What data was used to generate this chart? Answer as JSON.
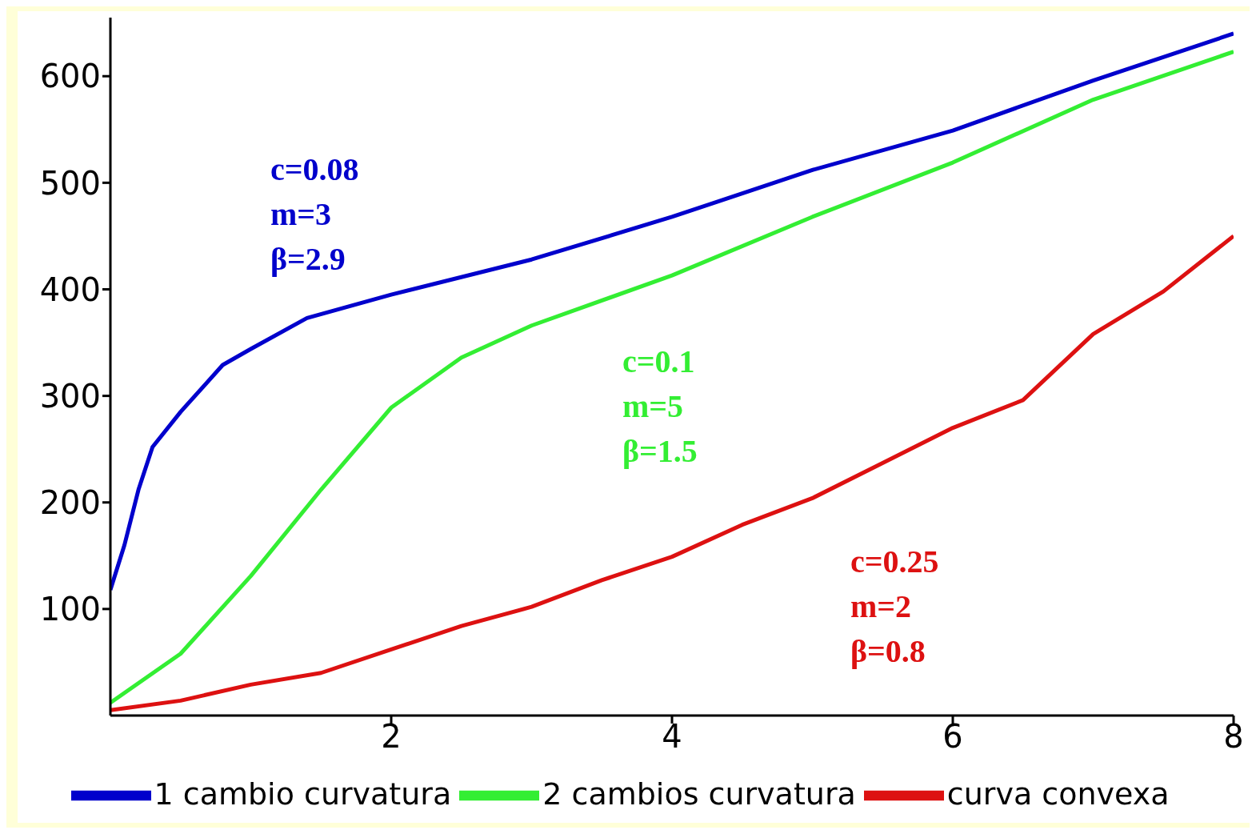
{
  "chart_data": {
    "type": "line",
    "x": [
      0,
      0.1,
      0.2,
      0.3,
      0.5,
      0.8,
      1,
      1.4,
      2,
      3,
      4,
      5,
      6,
      7,
      8
    ],
    "series": [
      {
        "name": "1 cambio curvatura",
        "color": "#0000cc",
        "values": [
          118,
          160,
          212,
          252,
          285,
          329,
          344,
          373,
          395,
          428,
          468,
          512,
          549,
          596,
          640
        ]
      },
      {
        "name": "2 cambios curvatura",
        "color": "#33ee33",
        "x": [
          0,
          0.5,
          1,
          1.5,
          2,
          2.5,
          3,
          4,
          5,
          6,
          7,
          8
        ],
        "values": [
          12,
          58,
          131,
          212,
          289,
          336,
          366,
          413,
          468,
          519,
          578,
          623
        ]
      },
      {
        "name": "curva convexa",
        "color": "#dd1111",
        "x": [
          0,
          0.5,
          1,
          1.5,
          2,
          2.5,
          3,
          3.5,
          4,
          4.5,
          5,
          5.5,
          6,
          6.5,
          7,
          7.5,
          8
        ],
        "values": [
          5,
          14,
          29,
          40,
          62,
          84,
          102,
          127,
          149,
          179,
          204,
          237,
          270,
          296,
          358,
          398,
          450
        ]
      }
    ],
    "annotations": [
      "c=0.08",
      "m=3",
      "β=2.9",
      "c=0.1",
      "m=5",
      "β=1.5",
      "c=0.25",
      "m=2",
      "β=0.8"
    ],
    "xlim": [
      0,
      8
    ],
    "xticks": [
      2,
      4,
      6,
      8
    ],
    "ylim": [
      0,
      655
    ],
    "yticks": [
      100,
      200,
      300,
      400,
      500,
      600
    ],
    "legend": "bottom",
    "marker": "none",
    "line_style": "solid"
  }
}
